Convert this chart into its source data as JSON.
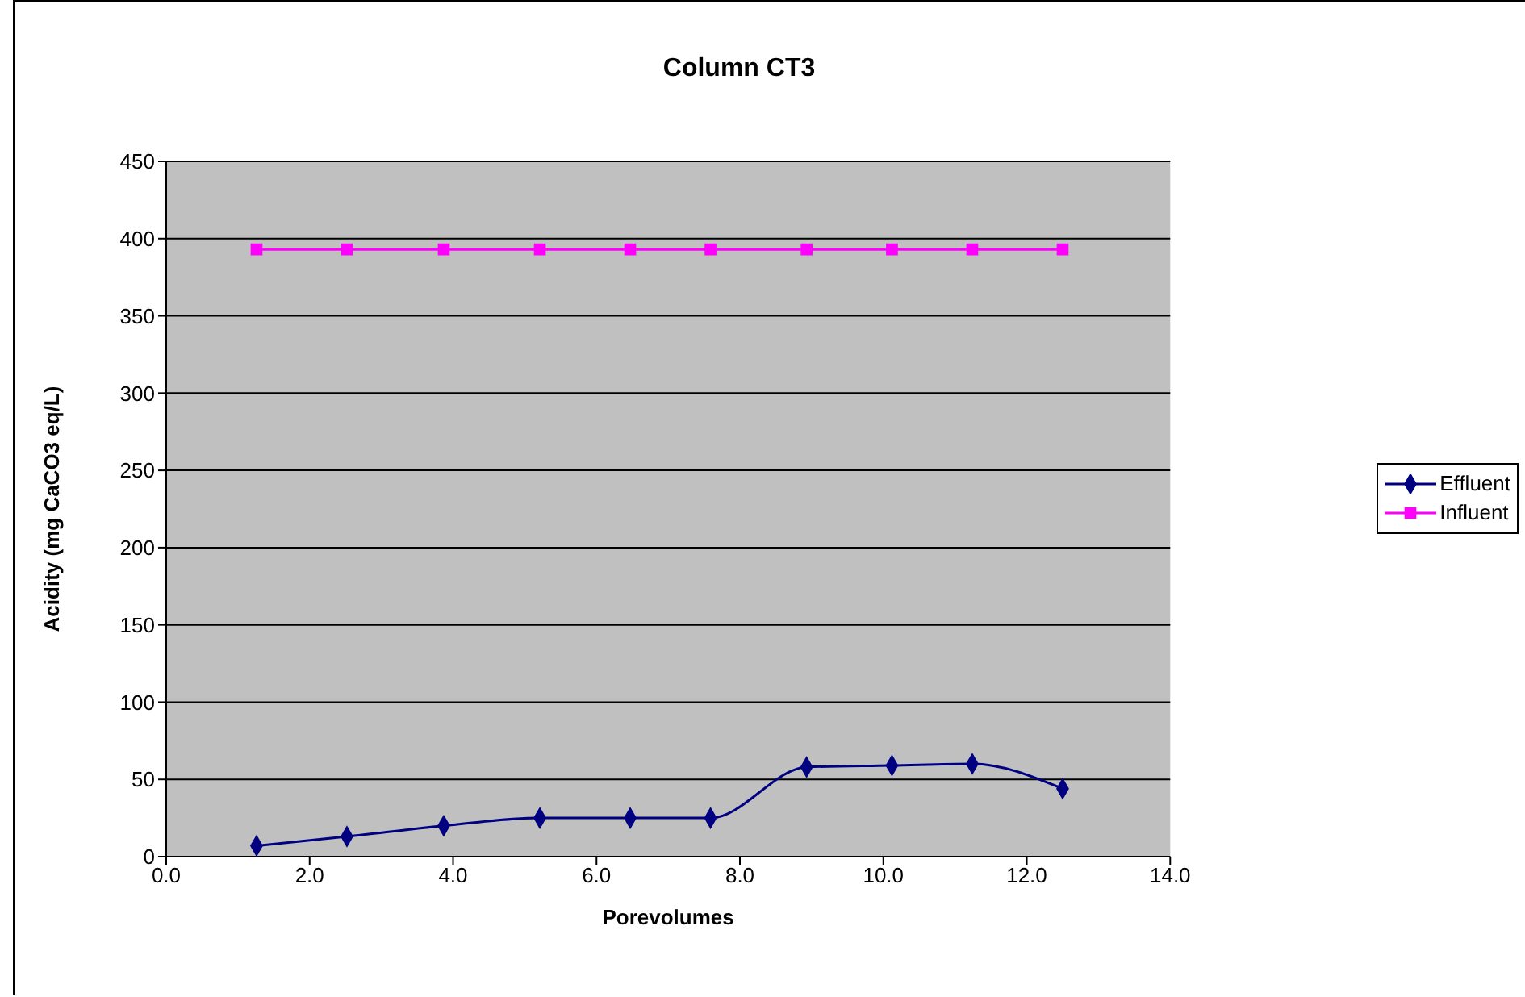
{
  "chart_data": {
    "type": "line",
    "title": "Column CT3",
    "xlabel": "Porevolumes",
    "ylabel": "Acidity (mg CaCO3 eq/L)",
    "xlim": [
      0,
      14
    ],
    "xticks": [
      {
        "value": 0,
        "label": "0.0"
      },
      {
        "value": 2,
        "label": "2.0"
      },
      {
        "value": 4,
        "label": "4.0"
      },
      {
        "value": 6,
        "label": "6.0"
      },
      {
        "value": 8,
        "label": "8.0"
      },
      {
        "value": 10,
        "label": "10.0"
      },
      {
        "value": 12,
        "label": "12.0"
      },
      {
        "value": 14,
        "label": "14.0"
      }
    ],
    "ylim": [
      0,
      450
    ],
    "yticks": [
      0,
      50,
      100,
      150,
      200,
      250,
      300,
      350,
      400,
      450
    ],
    "x": [
      1.26,
      2.52,
      3.87,
      5.21,
      6.47,
      7.59,
      8.93,
      10.12,
      11.24,
      12.5
    ],
    "series": [
      {
        "name": "Effluent",
        "color": "#000080",
        "marker": "diamond",
        "values": [
          7,
          13,
          20,
          25,
          25,
          25,
          58,
          59,
          60,
          44
        ]
      },
      {
        "name": "Influent",
        "color": "#ff00ff",
        "marker": "square",
        "values": [
          393,
          393,
          393,
          393,
          393,
          393,
          393,
          393,
          393,
          393
        ]
      }
    ],
    "grid": "y",
    "legend": "right"
  }
}
